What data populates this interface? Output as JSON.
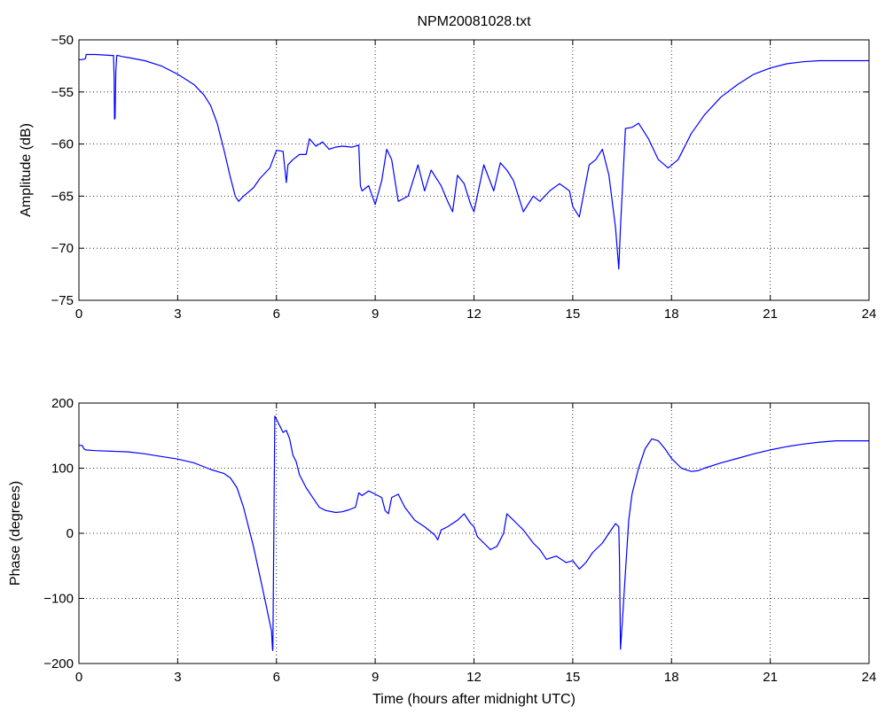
{
  "chart_data": [
    {
      "type": "line",
      "title": "NPM20081028.txt",
      "xlabel": "",
      "ylabel": "Amplitude (dB)",
      "xlim": [
        0,
        24
      ],
      "ylim": [
        -75,
        -50
      ],
      "xticks": [
        0,
        3,
        6,
        9,
        12,
        15,
        18,
        21,
        24
      ],
      "yticks": [
        -75,
        -70,
        -65,
        -60,
        -55,
        -50
      ],
      "xtick_labels": [
        "0",
        "3",
        "6",
        "9",
        "12",
        "15",
        "18",
        "21",
        "24"
      ],
      "ytick_labels": [
        "−75",
        "−70",
        "−65",
        "−60",
        "−55",
        "−50"
      ],
      "grid": true,
      "color": "#0000ff",
      "series": [
        {
          "x": [
            0,
            0.1,
            0.2,
            0.22,
            0.5,
            1.0,
            1.05,
            1.07,
            1.08,
            1.1,
            1.12,
            1.15,
            1.18,
            1.3,
            1.5,
            2.0,
            2.5,
            3.0,
            3.5,
            3.8,
            4.0,
            4.2,
            4.4,
            4.6,
            4.75,
            4.85,
            5.0,
            5.3,
            5.5,
            5.8,
            6.0,
            6.2,
            6.3,
            6.35,
            6.5,
            6.7,
            6.9,
            7.0,
            7.2,
            7.4,
            7.6,
            7.8,
            8.0,
            8.3,
            8.5,
            8.55,
            8.6,
            8.8,
            9.0,
            9.2,
            9.35,
            9.5,
            9.7,
            10.0,
            10.3,
            10.5,
            10.7,
            10.9,
            11.0,
            11.2,
            11.35,
            11.5,
            11.7,
            11.9,
            12.0,
            12.3,
            12.6,
            12.8,
            13.0,
            13.2,
            13.5,
            13.8,
            14.0,
            14.3,
            14.6,
            14.9,
            15.0,
            15.2,
            15.5,
            15.7,
            15.9,
            16.1,
            16.3,
            16.4,
            16.45,
            16.6,
            16.8,
            17.0,
            17.3,
            17.6,
            17.9,
            18.2,
            18.6,
            19.0,
            19.5,
            20.0,
            20.5,
            21.0,
            21.5,
            22.0,
            22.5,
            23.0,
            23.5,
            24.0
          ],
          "values": [
            -51.9,
            -51.9,
            -51.8,
            -51.4,
            -51.4,
            -51.5,
            -51.5,
            -53.5,
            -57.6,
            -57.5,
            -53.0,
            -51.5,
            -51.5,
            -51.6,
            -51.7,
            -52.0,
            -52.5,
            -53.3,
            -54.3,
            -55.3,
            -56.3,
            -58.0,
            -60.5,
            -63.2,
            -65.0,
            -65.5,
            -65.0,
            -64.2,
            -63.3,
            -62.3,
            -60.6,
            -60.7,
            -63.7,
            -62.0,
            -61.5,
            -61.0,
            -61.0,
            -59.5,
            -60.2,
            -59.8,
            -60.5,
            -60.3,
            -60.2,
            -60.3,
            -60.1,
            -64.0,
            -64.5,
            -64.0,
            -65.8,
            -63.5,
            -60.5,
            -61.5,
            -65.5,
            -65.0,
            -62.0,
            -64.5,
            -62.5,
            -63.5,
            -64.0,
            -65.5,
            -66.5,
            -63.0,
            -63.8,
            -65.8,
            -66.5,
            -62.0,
            -64.5,
            -61.8,
            -62.5,
            -63.5,
            -66.5,
            -65.0,
            -65.5,
            -64.5,
            -63.8,
            -64.5,
            -66.0,
            -67.0,
            -62.0,
            -61.5,
            -60.5,
            -63.0,
            -68.0,
            -72.0,
            -68.0,
            -58.5,
            -58.4,
            -58.0,
            -59.5,
            -61.5,
            -62.3,
            -61.5,
            -59.0,
            -57.2,
            -55.5,
            -54.3,
            -53.3,
            -52.7,
            -52.3,
            -52.1,
            -52.0,
            -52.0,
            -52.0,
            -52.0
          ]
        }
      ]
    },
    {
      "type": "line",
      "title": "",
      "xlabel": "Time (hours after midnight UTC)",
      "ylabel": "Phase (degrees)",
      "xlim": [
        0,
        24
      ],
      "ylim": [
        -200,
        200
      ],
      "xticks": [
        0,
        3,
        6,
        9,
        12,
        15,
        18,
        21,
        24
      ],
      "yticks": [
        -200,
        -100,
        0,
        100,
        200
      ],
      "xtick_labels": [
        "0",
        "3",
        "6",
        "9",
        "12",
        "15",
        "18",
        "21",
        "24"
      ],
      "ytick_labels": [
        "−200",
        "−100",
        "0",
        "100",
        "200"
      ],
      "grid": true,
      "color": "#0000ff",
      "series": [
        {
          "x": [
            0,
            0.1,
            0.15,
            0.2,
            0.5,
            1.0,
            1.5,
            2.0,
            2.5,
            3.0,
            3.5,
            3.8,
            4.0,
            4.2,
            4.4,
            4.6,
            4.8,
            5.0,
            5.3,
            5.6,
            5.85,
            5.88,
            5.89,
            5.95,
            6.0,
            6.1,
            6.2,
            6.3,
            6.4,
            6.5,
            6.6,
            6.7,
            6.9,
            7.1,
            7.3,
            7.5,
            7.8,
            8.0,
            8.2,
            8.4,
            8.5,
            8.6,
            8.8,
            9.0,
            9.2,
            9.3,
            9.4,
            9.5,
            9.7,
            9.9,
            10.2,
            10.5,
            10.8,
            10.9,
            11.0,
            11.2,
            11.5,
            11.7,
            11.9,
            12.0,
            12.1,
            12.3,
            12.5,
            12.7,
            12.9,
            13.0,
            13.1,
            13.3,
            13.5,
            13.8,
            14.0,
            14.2,
            14.5,
            14.8,
            15.0,
            15.2,
            15.4,
            15.6,
            15.9,
            16.1,
            16.3,
            16.4,
            16.42,
            16.45,
            16.5,
            16.6,
            16.7,
            16.8,
            17.0,
            17.2,
            17.4,
            17.6,
            17.8,
            18.0,
            18.3,
            18.6,
            18.8,
            19.0,
            19.5,
            20.0,
            20.5,
            21.0,
            21.5,
            22.0,
            22.5,
            23.0,
            23.5,
            24.0
          ],
          "values": [
            135,
            135,
            130,
            128,
            127,
            126,
            125,
            122,
            118,
            114,
            108,
            102,
            98,
            95,
            92,
            85,
            70,
            40,
            -20,
            -90,
            -150,
            -178,
            -180,
            180,
            175,
            165,
            155,
            158,
            145,
            120,
            110,
            90,
            70,
            55,
            40,
            35,
            32,
            33,
            36,
            40,
            62,
            58,
            65,
            60,
            55,
            35,
            30,
            55,
            60,
            40,
            20,
            10,
            -2,
            -10,
            5,
            10,
            20,
            30,
            15,
            10,
            -5,
            -15,
            -25,
            -20,
            0,
            30,
            25,
            15,
            5,
            -15,
            -25,
            -40,
            -35,
            -45,
            -42,
            -55,
            -45,
            -30,
            -15,
            0,
            15,
            10,
            -40,
            -178,
            -140,
            -60,
            20,
            60,
            100,
            130,
            145,
            142,
            130,
            115,
            100,
            95,
            96,
            100,
            108,
            115,
            122,
            128,
            133,
            137,
            140,
            142,
            142,
            142
          ]
        }
      ]
    }
  ]
}
